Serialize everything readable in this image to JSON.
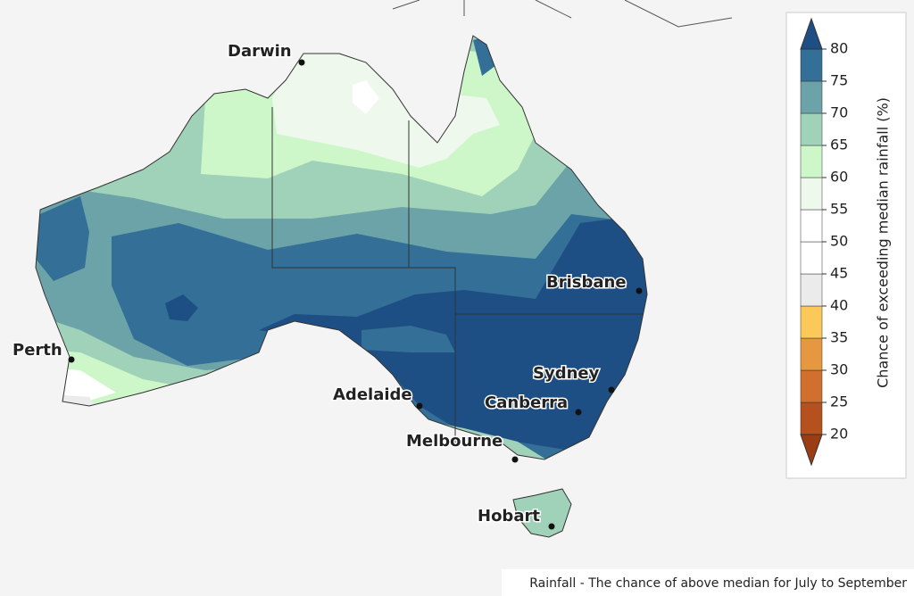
{
  "map": {
    "cities": [
      "Darwin",
      "Brisbane",
      "Perth",
      "Sydney",
      "Adelaide",
      "Canberra",
      "Melbourne",
      "Hobart"
    ],
    "caption": "Rainfall - The chance of above median for July to September"
  },
  "legend": {
    "title": "Chance of exceeding median rainfall (%)",
    "ticks": [
      20,
      25,
      30,
      35,
      40,
      45,
      50,
      55,
      60,
      65,
      70,
      75,
      80
    ],
    "colors": [
      "#b5511f",
      "#d1702e",
      "#e59840",
      "#fbc95a",
      "#ebebeb",
      "#ffffff",
      "#ffffff",
      "#eef8ec",
      "#cdf7c9",
      "#9fd2b8",
      "#6ba3a8",
      "#336f96"
    ],
    "below_color": "#9a3c14",
    "above_color": "#1d4f85"
  }
}
